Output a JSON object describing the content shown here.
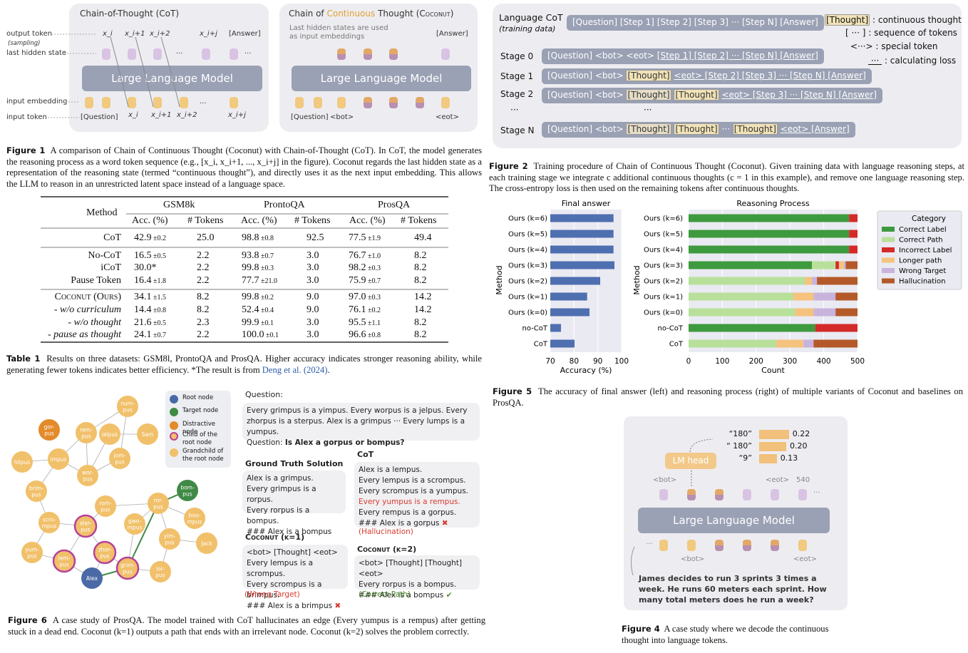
{
  "fig1": {
    "cot_title": "Chain-of-Thought (CoT)",
    "coco_title_a": "Chain of ",
    "coco_title_b": "Continuous",
    "coco_title_c": " Thought (",
    "coco_title_d": "Coconut",
    "coco_title_e": ")",
    "output_token": "output token",
    "sampling": "(sampling)",
    "last_hidden": "last hidden state",
    "input_embedding": "input embedding",
    "input_token": "input token",
    "llm": "Large Language Model",
    "out_labels": [
      "x_i",
      "x_i+1",
      "x_i+2",
      "···",
      "x_i+j",
      "[Answer]",
      "···"
    ],
    "in_labels": [
      "[Question]",
      "x_i",
      "x_i+1",
      "x_i+2",
      "···",
      "x_i+j"
    ],
    "coco_note": "Last hidden states are used as input embeddings",
    "coco_answer": "[Answer]",
    "coco_in": [
      "[Question]",
      "<bot>",
      "<eot>"
    ],
    "caption_label": "Figure 1",
    "caption": "A comparison of Chain of Continuous Thought (Coconut) with Chain-of-Thought (CoT). In CoT, the model generates the reasoning process as a word token sequence (e.g., [x_i, x_i+1, ..., x_i+j] in the figure). Coconut regards the last hidden state as a representation of the reasoning state (termed “continuous thought”), and directly uses it as the next input embedding. This allows the LLM to reason in an unrestricted latent space instead of a language space."
  },
  "fig2": {
    "lang_cot": "Language CoT",
    "training_data": "(training data)",
    "lang_row": "[Question] [Step 1] [Step 2] [Step 3] ··· [Step N] [Answer]",
    "legend": [
      "[Thought] : continuous thought",
      "[ ··· ] : sequence of tokens",
      "<···> : special token",
      "___ : calculating loss"
    ],
    "stages": [
      "Stage 0",
      "Stage 1",
      "Stage 2",
      "···",
      "Stage N"
    ],
    "stage_dots": "···",
    "caption_label": "Figure 2",
    "caption": "Training procedure of Chain of Continuous Thought (Coconut). Given training data with language reasoning steps, at each training stage we integrate c additional continuous thoughts (c = 1 in this example), and remove one language reasoning step. The cross-entropy loss is then used on the remaining tokens after continuous thoughts."
  },
  "table1": {
    "headers": [
      "Method",
      "GSM8k",
      "ProntoQA",
      "ProsQA"
    ],
    "sub": [
      "Acc. (%)",
      "# Tokens",
      "Acc. (%)",
      "# Tokens",
      "Acc. (%)",
      "# Tokens"
    ],
    "rows": [
      [
        "CoT",
        "42.9",
        "±0.2",
        "25.0",
        "98.8",
        "±0.8",
        "92.5",
        "77.5",
        "±1.9",
        "49.4"
      ],
      [
        "No-CoT",
        "16.5",
        "±0.5",
        "2.2",
        "93.8",
        "±0.7",
        "3.0",
        "76.7",
        "±1.0",
        "8.2"
      ],
      [
        "iCoT",
        "30.0*",
        "",
        "2.2",
        "99.8",
        "±0.3",
        "3.0",
        "98.2",
        "±0.3",
        "8.2"
      ],
      [
        "Pause Token",
        "16.4",
        "±1.8",
        "2.2",
        "77.7",
        "±21.0",
        "3.0",
        "75.9",
        "±0.7",
        "8.2"
      ],
      [
        "Coconut (Ours)",
        "34.1",
        "±1.5",
        "8.2",
        "99.8",
        "±0.2",
        "9.0",
        "97.0",
        "±0.3",
        "14.2"
      ],
      [
        "- w/o curriculum",
        "14.4",
        "±0.8",
        "8.2",
        "52.4",
        "±0.4",
        "9.0",
        "76.1",
        "±0.2",
        "14.2"
      ],
      [
        "- w/o thought",
        "21.6",
        "±0.5",
        "2.3",
        "99.9",
        "±0.1",
        "3.0",
        "95.5",
        "±1.1",
        "8.2"
      ],
      [
        "- pause as thought",
        "24.1",
        "±0.7",
        "2.2",
        "100.0",
        "±0.1",
        "3.0",
        "96.6",
        "±0.8",
        "8.2"
      ]
    ],
    "caption_label": "Table 1",
    "caption": "Results on three datasets: GSM8l, ProntoQA and ProsQA. Higher accuracy indicates stronger reasoning ability, while generating fewer tokens indicates better efficiency. *The result is from ",
    "cite": "Deng et al. (2024)",
    "caption_end": "."
  },
  "chart_data": [
    {
      "type": "bar",
      "title": "Final answer",
      "xlabel": "Accuracy (%)",
      "ylabel": "Method",
      "xlim": [
        70,
        100
      ],
      "xticks": [
        70,
        80,
        90,
        100
      ],
      "categories": [
        "Ours (k=6)",
        "Ours (k=5)",
        "Ours (k=4)",
        "Ours (k=3)",
        "Ours (k=2)",
        "Ours (k=1)",
        "Ours (k=0)",
        "no-CoT",
        "CoT"
      ],
      "values": [
        96.6,
        96.6,
        96.6,
        97.0,
        91.0,
        85.5,
        86.5,
        74.5,
        80.2
      ],
      "color": "#4e6fb0"
    },
    {
      "type": "bar",
      "stacked": true,
      "title": "Reasoning Process",
      "xlabel": "Count",
      "ylabel": "Method",
      "xlim": [
        0,
        500
      ],
      "xticks": [
        0,
        100,
        200,
        300,
        400,
        500
      ],
      "categories": [
        "Ours (k=6)",
        "Ours (k=5)",
        "Ours (k=4)",
        "Ours (k=3)",
        "Ours (k=2)",
        "Ours (k=1)",
        "Ours (k=0)",
        "no-CoT",
        "CoT"
      ],
      "legend_title": "Category",
      "series": [
        {
          "name": "Correct Label",
          "color": "#3e9a3e",
          "values": [
            475,
            475,
            475,
            365,
            0,
            0,
            0,
            375,
            0
          ]
        },
        {
          "name": "Correct Path",
          "color": "#b8e09a",
          "values": [
            0,
            0,
            0,
            70,
            345,
            310,
            315,
            0,
            260
          ]
        },
        {
          "name": "Incorrect Label",
          "color": "#d42a2a",
          "values": [
            25,
            25,
            25,
            10,
            0,
            0,
            0,
            125,
            0
          ]
        },
        {
          "name": "Longer path",
          "color": "#f5c37d",
          "values": [
            0,
            0,
            0,
            15,
            20,
            60,
            55,
            0,
            80
          ]
        },
        {
          "name": "Wrong Target",
          "color": "#c8b3dc",
          "values": [
            0,
            0,
            0,
            5,
            15,
            65,
            65,
            0,
            30
          ]
        },
        {
          "name": "Hallucination",
          "color": "#b45a2a",
          "values": [
            0,
            0,
            0,
            35,
            120,
            65,
            65,
            0,
            130
          ]
        }
      ]
    }
  ],
  "fig5": {
    "caption_label": "Figure 5",
    "caption": "The accuracy of final answer (left) and reasoning process (right) of multiple variants of Coconut and baselines on ProsQA."
  },
  "fig6": {
    "legend": [
      "Root node",
      "Target node",
      "Distractive node",
      "Child of the root node",
      "Grandchild of the root node"
    ],
    "nodes": [
      "num-pus",
      "gor-pus",
      "rem-pus",
      "jelpus",
      "Sam",
      "hilpus",
      "impus",
      "jom-pus",
      "wor-pus",
      "brim-pus",
      "rom-pus",
      "ror-pus",
      "bom-pus",
      "scro-mpus",
      "ster-pus",
      "gwo-mpus",
      "boo-mpus",
      "zhor-pus",
      "yim-pus",
      "yum-pus",
      "lem-pus",
      "grim-pus",
      "lor-pus",
      "Jack",
      "Alex"
    ],
    "question_h": "Question:",
    "question": "Every grimpus is a yimpus. Every worpus is a jelpus. Every zhorpus is a sterpus. Alex is a grimpus ··· Every lumps is a yumpus.",
    "question_q": "Question: ",
    "question_qb": "Is Alex a gorpus or bompus?",
    "gt_h": "Ground Truth Solution",
    "gt": [
      "Alex is a grimpus.",
      "Every grimpus is a rorpus.",
      "Every rorpus is a bompus.",
      "### Alex is a bompus"
    ],
    "cot_h": "CoT",
    "cot": [
      "Alex is a lempus.",
      "Every lempus is a scrompus.",
      "Every scrompus is a yumpus.",
      "Every yumpus is a rempus.",
      "Every rempus is a gorpus.",
      "### Alex is a gorpus"
    ],
    "cot_tag": "(Hallucination)",
    "k1_h": "Coconut (k=1)",
    "k1": [
      "<bot> [Thought] <eot>",
      "Every lempus is a scrompus.",
      "Every scrompus is a brimpus.",
      "### Alex is a brimpus"
    ],
    "k1_tag": "(Wrong Target)",
    "k2_h": "Coconut (k=2)",
    "k2": [
      "<bot> [Thought] [Thought] <eot>",
      "Every rorpus is a bompus.",
      "### Alex is a bompus"
    ],
    "k2_tag": "(Correct Path)",
    "caption_label": "Figure 6",
    "caption": "A case study of ProsQA. The model trained with CoT hallucinates an edge (Every yumpus is a rempus) after getting stuck in a dead end. Coconut (k=1) outputs a path that ends with an irrelevant node. Coconut (k=2) solves the problem correctly."
  },
  "fig4": {
    "lm_head": "LM head",
    "decoded": [
      {
        "tok": "“180”",
        "p": "0.22",
        "v": 0.22
      },
      {
        "tok": "“ 180”",
        "p": "0.20",
        "v": 0.2
      },
      {
        "tok": "“9”",
        "p": "0.13",
        "v": 0.13
      }
    ],
    "top_labels": [
      "<bot>",
      "<eot>",
      "540",
      "···"
    ],
    "llm": "Large Language Model",
    "bottom_labels": [
      "···",
      "<bot>",
      "<eot>"
    ],
    "question": "James decides to run 3 sprints 3 times a week.  He runs 60 meters each sprint.  How many total meters does he run a week?",
    "caption_label": "Figure 4",
    "caption": "A case study where we decode the continuous thought into language tokens."
  }
}
